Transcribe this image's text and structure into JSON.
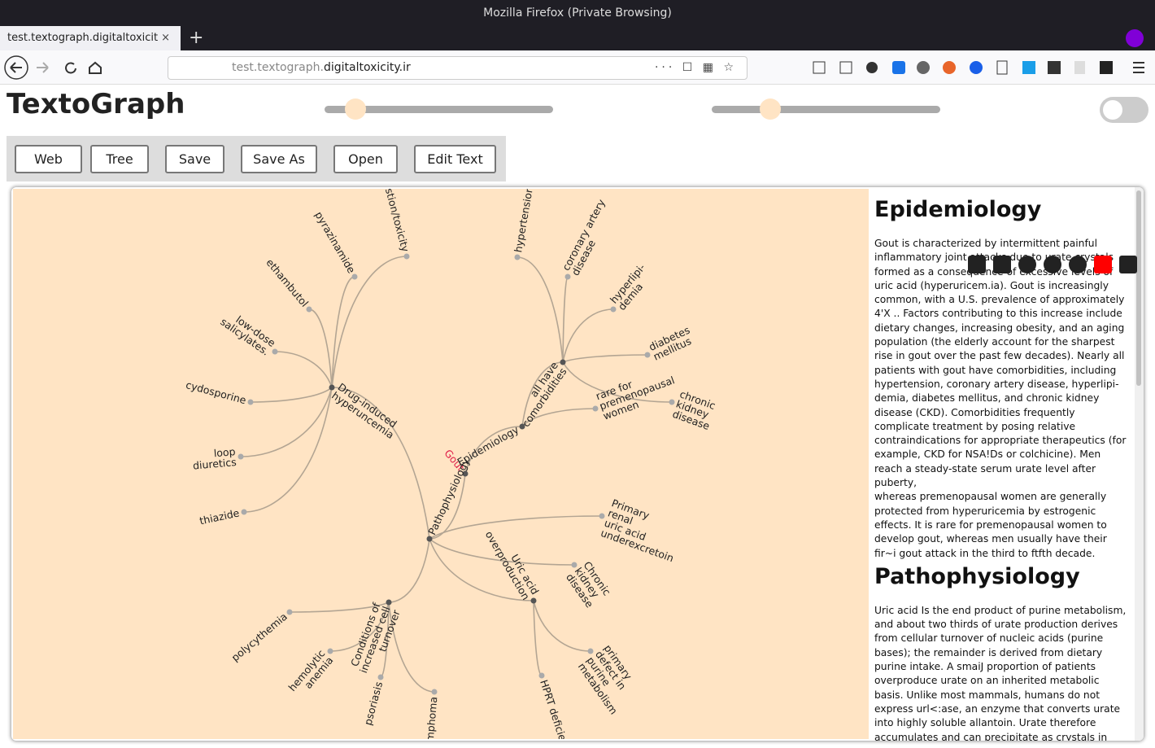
{
  "browser": {
    "window_title": "Mozilla Firefox (Private Browsing)",
    "tab_title": "test.textograph.digitaltoxicity.ir",
    "url_prefix": "test.textograph.",
    "url_domain": "digitaltoxicity.ir"
  },
  "app": {
    "title": "TextoGraph",
    "buttons": [
      "Web",
      "Tree",
      "Save",
      "Save As",
      "Open",
      "Edit Text"
    ]
  },
  "graph": {
    "nodes": [
      {
        "lines": [
          "Gout"
        ]
      },
      {
        "lines": [
          "Epidemiology"
        ]
      },
      {
        "lines": [
          "Pathophysiology"
        ]
      },
      {
        "lines": [
          "all have",
          "comorbidities"
        ]
      },
      {
        "lines": [
          "rare for",
          "premenopausal",
          "women"
        ]
      },
      {
        "lines": [
          "hypertension"
        ]
      },
      {
        "lines": [
          "coronary artery",
          "disease"
        ]
      },
      {
        "lines": [
          "hyperlipi-",
          "demia"
        ]
      },
      {
        "lines": [
          "diabetes",
          "mellitus"
        ]
      },
      {
        "lines": [
          "chronic",
          "kidney",
          "disease"
        ]
      },
      {
        "lines": [
          "Drug-induced",
          "hyperuncemia"
        ]
      },
      {
        "lines": [
          "Primary",
          "renal",
          "uric acid",
          "underexcretoin"
        ]
      },
      {
        "lines": [
          "Chronic",
          "kidney",
          "disease"
        ]
      },
      {
        "lines": [
          "Uric acid",
          "overproduction"
        ]
      },
      {
        "lines": [
          "Conditions of",
          "increased cell",
          "turnover"
        ]
      },
      {
        "lines": [
          "ingestion/toxicity"
        ]
      },
      {
        "lines": [
          "pyrazinamide"
        ]
      },
      {
        "lines": [
          "ethambutol"
        ]
      },
      {
        "lines": [
          "low-dose",
          "salicylates."
        ]
      },
      {
        "lines": [
          "cydosporine"
        ]
      },
      {
        "lines": [
          "loop",
          "diuretics"
        ]
      },
      {
        "lines": [
          "thiazide"
        ]
      },
      {
        "lines": [
          "primary",
          "defect in",
          "purine",
          "metabolism"
        ]
      },
      {
        "lines": [
          "HPRT deficiency"
        ]
      },
      {
        "lines": [
          "polycythemia"
        ]
      },
      {
        "lines": [
          "hemolytic",
          "anemia"
        ]
      },
      {
        "lines": [
          "psoriasis"
        ]
      },
      {
        "lines": [
          "lymphoma"
        ]
      }
    ]
  },
  "document": {
    "sections": [
      {
        "heading": "Epidemiology",
        "paragraphs": [
          "Gout is characterized by intermittent painful inflammatory joint attacks due to urate crystals formed as a consequence of excessive levels of uric acid (hyperuricem.ia). Gout is increasingly common, with a U.S. prevalence of approximately 4'X .. Factors contributing to this increase include dietary changes, increasing obesity, and an aging population (the elderly account for the sharpest rise in gout over the past few decades). Nearly all patients with gout have comorbidities, including hypertension, coronary artery disease, hyperlipi-demia, diabetes mellitus, and chronic kidney disease (CKD). Comorbidities frequently complicate treatment by posing relative contraindications for appropriate therapeutics (for example, CKD for NSA!Ds or colchicine). Men reach a steady-state serum urate level after puberty,",
          "whereas premenopausal women are generally protected from hyperuricemia by estrogenic effects. It is rare for premenopausal women to develop gout, whereas men usually have their fir~i gout attack in the third to ftfth decade."
        ]
      },
      {
        "heading": "Pathophysiology",
        "paragraphs": [
          "Uric acid Is the end product of purine metabolism, and about two thirds of urate production derives from cellular turnover of nucleic acids (purine bases); the remainder is derived from dietary purine intake. A smaiJ proportion of patients overproduce urate on an inherited metabolic basis. Unlike most mammals, humans do not express url<:ase, an enzyme that converts urate into highly soluble allantoin. Urate therefore accumulates and can precipitate as crystals in joints and other tissues If"
        ]
      }
    ]
  }
}
